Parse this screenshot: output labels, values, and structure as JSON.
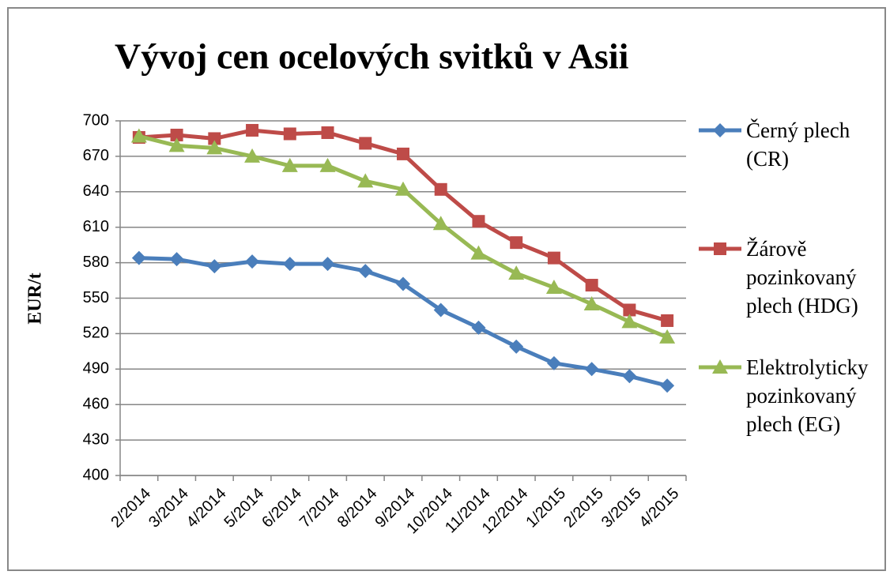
{
  "chart_data": {
    "type": "line",
    "title": "Vývoj cen ocelových svitků v Asii",
    "ylabel": "EUR/t",
    "categories": [
      "2/2014",
      "3/2014",
      "4/2014",
      "5/2014",
      "6/2014",
      "7/2014",
      "8/2014",
      "9/2014",
      "10/2014",
      "11/2014",
      "12/2014",
      "1/2015",
      "2/2015",
      "3/2015",
      "4/2015"
    ],
    "series": [
      {
        "name": "Černý plech (CR)",
        "color": "#4a7ebb",
        "marker": "diamond",
        "values": [
          584,
          583,
          577,
          581,
          579,
          579,
          573,
          562,
          540,
          525,
          509,
          495,
          490,
          484,
          476
        ]
      },
      {
        "name": "Žárově pozinkovaný plech (HDG)",
        "color": "#be4b48",
        "marker": "square",
        "values": [
          686,
          688,
          685,
          692,
          689,
          690,
          681,
          672,
          642,
          615,
          597,
          584,
          561,
          540,
          531
        ]
      },
      {
        "name": "Elektrolyticky pozinkovaný plech (EG)",
        "color": "#98b954",
        "marker": "triangle",
        "values": [
          687,
          679,
          677,
          670,
          662,
          662,
          649,
          642,
          613,
          588,
          571,
          559,
          545,
          530,
          517
        ]
      }
    ],
    "ylim": [
      400,
      700
    ],
    "yticks": [
      400,
      430,
      460,
      490,
      520,
      550,
      580,
      610,
      640,
      670,
      700
    ],
    "grid": true,
    "legend": "right"
  }
}
